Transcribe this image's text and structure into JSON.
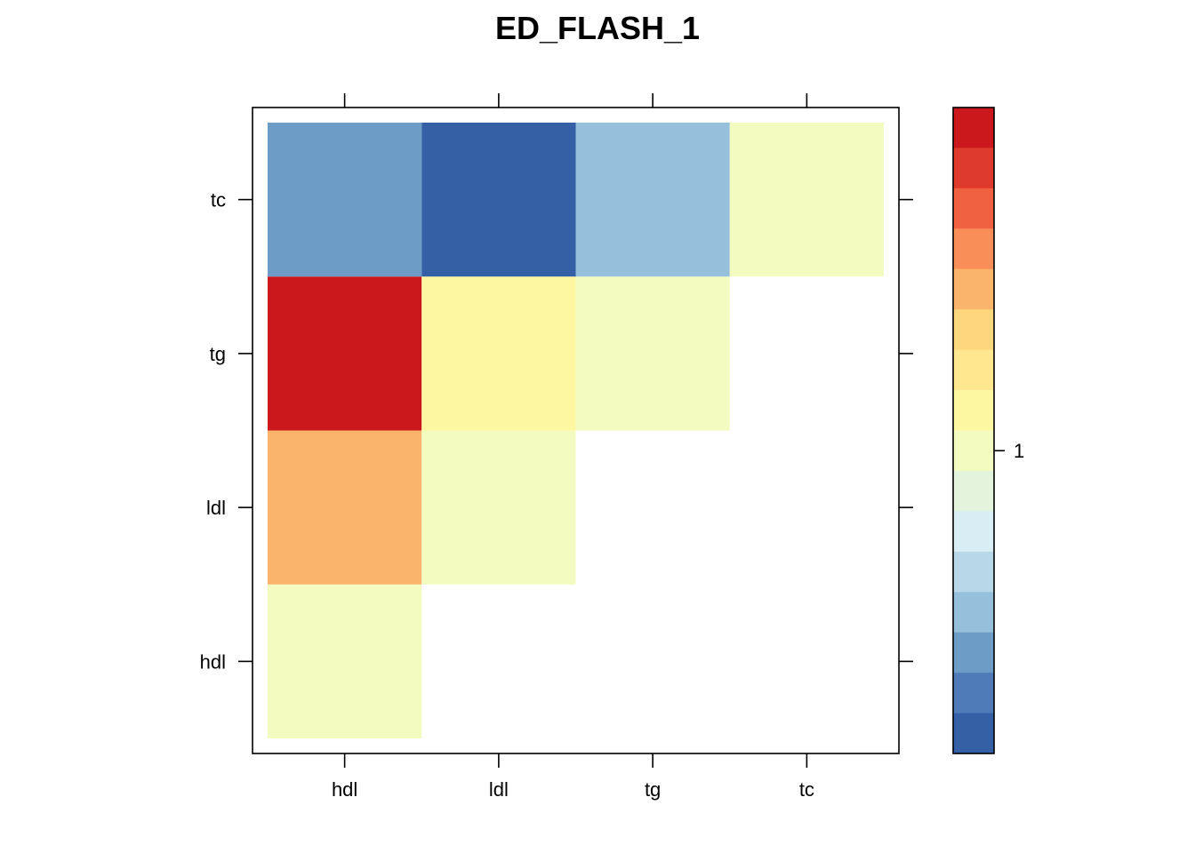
{
  "chart_data": {
    "type": "heatmap",
    "title": "ED_FLASH_1",
    "xlabel": "",
    "ylabel": "",
    "x_categories": [
      "hdl",
      "ldl",
      "tg",
      "tc"
    ],
    "y_categories": [
      "hdl",
      "ldl",
      "tg",
      "tc"
    ],
    "cells": [
      {
        "x": "hdl",
        "y": "hdl",
        "color": "#F4FBC1"
      },
      {
        "x": "hdl",
        "y": "ldl",
        "color": "#FAB46C"
      },
      {
        "x": "ldl",
        "y": "ldl",
        "color": "#F4FBC1"
      },
      {
        "x": "hdl",
        "y": "tg",
        "color": "#CB181D"
      },
      {
        "x": "ldl",
        "y": "tg",
        "color": "#FEF7A2"
      },
      {
        "x": "tg",
        "y": "tg",
        "color": "#F4FBC1"
      },
      {
        "x": "hdl",
        "y": "tc",
        "color": "#6D9DC6"
      },
      {
        "x": "ldl",
        "y": "tc",
        "color": "#3560A6"
      },
      {
        "x": "tg",
        "y": "tc",
        "color": "#95BFDA"
      },
      {
        "x": "tc",
        "y": "tc",
        "color": "#F4FBC1"
      }
    ],
    "colorbar": {
      "colors_top_to_bottom": [
        "#CB181D",
        "#DE3A2D",
        "#F06142",
        "#F98E58",
        "#FAB46C",
        "#FDD67E",
        "#FEE78F",
        "#FEF7A2",
        "#F4FBC1",
        "#E4F4DC",
        "#D8EEF4",
        "#B8D8E9",
        "#95BFDA",
        "#6D9DC6",
        "#4F7CB8",
        "#3560A6"
      ],
      "tick_labels": [
        {
          "label": "1",
          "index": 8
        }
      ]
    },
    "grid": false,
    "legend": "right"
  }
}
